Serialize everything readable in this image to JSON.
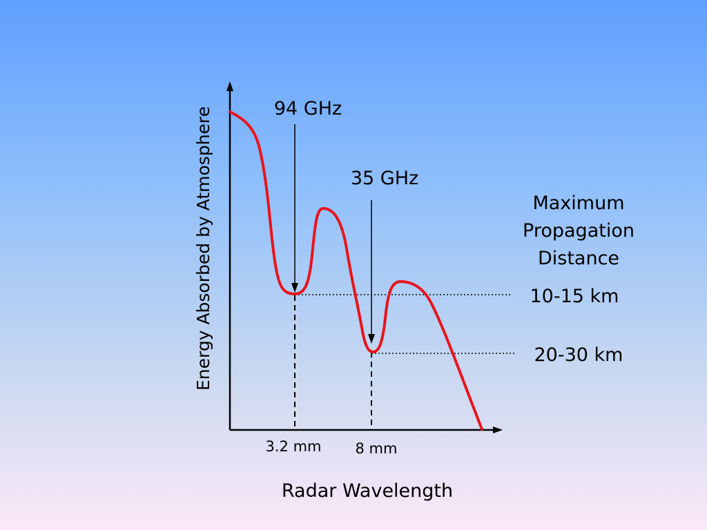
{
  "axes": {
    "y_label": "Energy Absorbed by Atmosphere",
    "x_label": "Radar Wavelength"
  },
  "annotations": {
    "freq_94": "94 GHz",
    "freq_35": "35 GHz",
    "wavelength_3_2": "3.2 mm",
    "wavelength_8": "8 mm"
  },
  "propagation": {
    "title_line1": "Maximum",
    "title_line2": "Propagation",
    "title_line3": "Distance",
    "value_94": "10-15 km",
    "value_35": "20-30 km"
  },
  "colors": {
    "curve": "#e8141c",
    "axes": "#000000"
  }
}
